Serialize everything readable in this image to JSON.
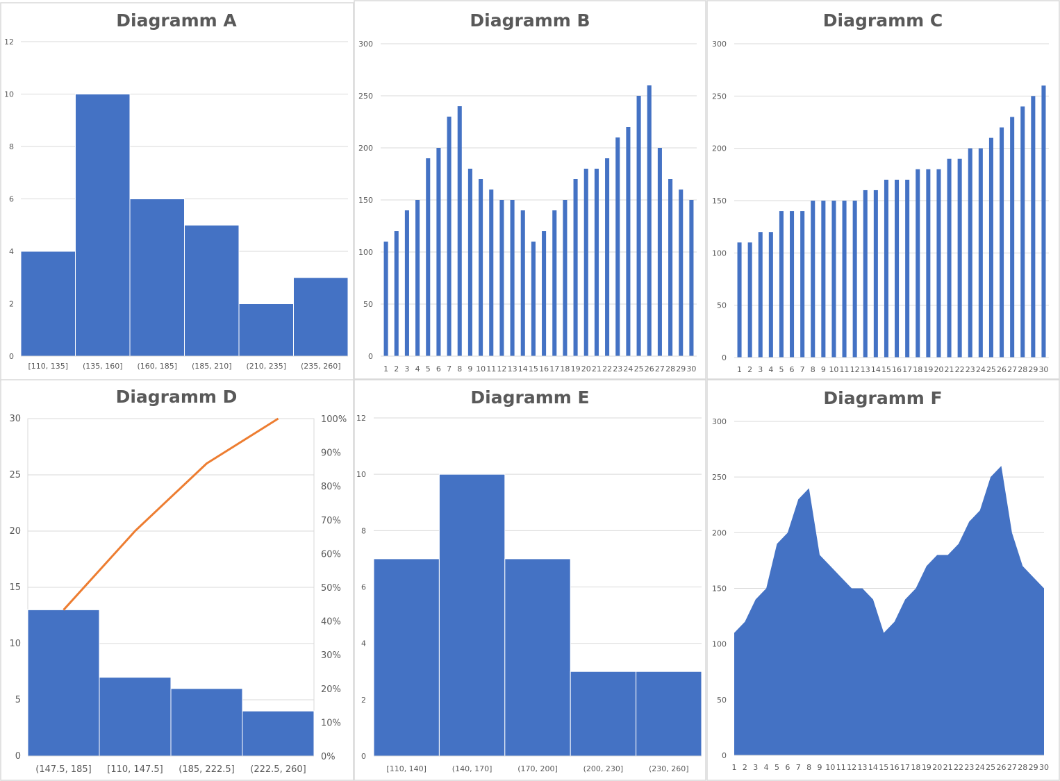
{
  "colors": {
    "bar": "#4472C4",
    "line": "#ED7D31",
    "grid": "#D9D9D9",
    "text": "#595959"
  },
  "chart_data": [
    {
      "title": "Diagramm A",
      "type": "bar",
      "variant": "histogram",
      "categories": [
        "[110, 135]",
        "(135, 160]",
        "(160, 185]",
        "(185, 210]",
        "(210, 235]",
        "(235, 260]"
      ],
      "values": [
        4,
        10,
        6,
        5,
        2,
        3
      ],
      "ylim": [
        0,
        12
      ],
      "yticks": [
        0,
        2,
        4,
        6,
        8,
        10,
        12
      ],
      "grid": true
    },
    {
      "title": "Diagramm B",
      "type": "bar",
      "categories": [
        "1",
        "2",
        "3",
        "4",
        "5",
        "6",
        "7",
        "8",
        "9",
        "10",
        "11",
        "12",
        "13",
        "14",
        "15",
        "16",
        "17",
        "18",
        "19",
        "20",
        "21",
        "22",
        "23",
        "24",
        "25",
        "26",
        "27",
        "28",
        "29",
        "30"
      ],
      "values": [
        110,
        120,
        140,
        150,
        190,
        200,
        230,
        240,
        180,
        170,
        160,
        150,
        150,
        140,
        110,
        120,
        140,
        150,
        170,
        180,
        180,
        190,
        210,
        220,
        250,
        260,
        200,
        170,
        160,
        150
      ],
      "ylim": [
        0,
        300
      ],
      "yticks": [
        0,
        50,
        100,
        150,
        200,
        250,
        300
      ],
      "grid": true
    },
    {
      "title": "Diagramm C",
      "type": "bar",
      "categories": [
        "1",
        "2",
        "3",
        "4",
        "5",
        "6",
        "7",
        "8",
        "9",
        "10",
        "11",
        "12",
        "13",
        "14",
        "15",
        "16",
        "17",
        "18",
        "19",
        "20",
        "21",
        "22",
        "23",
        "24",
        "25",
        "26",
        "27",
        "28",
        "29",
        "30"
      ],
      "values": [
        110,
        110,
        120,
        120,
        140,
        140,
        140,
        150,
        150,
        150,
        150,
        150,
        160,
        160,
        170,
        170,
        170,
        180,
        180,
        180,
        190,
        190,
        200,
        200,
        210,
        220,
        230,
        240,
        250,
        260
      ],
      "ylim": [
        0,
        300
      ],
      "yticks": [
        0,
        50,
        100,
        150,
        200,
        250,
        300
      ],
      "grid": true
    },
    {
      "title": "Diagramm D",
      "type": "bar",
      "variant": "pareto",
      "categories": [
        "(147.5, 185]",
        "[110, 147.5]",
        "(185, 222.5]",
        "(222.5, 260]"
      ],
      "values": [
        13,
        7,
        6,
        4
      ],
      "cumulative_percent": [
        43.3,
        66.7,
        86.7,
        100
      ],
      "ylim": [
        0,
        30
      ],
      "yticks": [
        0,
        5,
        10,
        15,
        20,
        25,
        30
      ],
      "y2lim": [
        0,
        100
      ],
      "y2ticks": [
        "0%",
        "10%",
        "20%",
        "30%",
        "40%",
        "50%",
        "60%",
        "70%",
        "80%",
        "90%",
        "100%"
      ],
      "grid": true
    },
    {
      "title": "Diagramm  E",
      "type": "bar",
      "variant": "histogram",
      "categories": [
        "[110, 140]",
        "(140, 170]",
        "(170, 200]",
        "(200, 230]",
        "(230, 260]"
      ],
      "values": [
        7,
        10,
        7,
        3,
        3
      ],
      "ylim": [
        0,
        12
      ],
      "yticks": [
        0,
        2,
        4,
        6,
        8,
        10,
        12
      ],
      "grid": true
    },
    {
      "title": "Diagramm F",
      "type": "area",
      "categories": [
        "1",
        "2",
        "3",
        "4",
        "5",
        "6",
        "7",
        "8",
        "9",
        "10",
        "11",
        "12",
        "13",
        "14",
        "15",
        "16",
        "17",
        "18",
        "19",
        "20",
        "21",
        "22",
        "23",
        "24",
        "25",
        "26",
        "27",
        "28",
        "29",
        "30"
      ],
      "values": [
        110,
        120,
        140,
        150,
        190,
        200,
        230,
        240,
        180,
        170,
        160,
        150,
        150,
        140,
        110,
        120,
        140,
        150,
        170,
        180,
        180,
        190,
        210,
        220,
        250,
        260,
        200,
        170,
        160,
        150
      ],
      "ylim": [
        0,
        300
      ],
      "yticks": [
        0,
        50,
        100,
        150,
        200,
        250,
        300
      ],
      "grid": true
    }
  ]
}
